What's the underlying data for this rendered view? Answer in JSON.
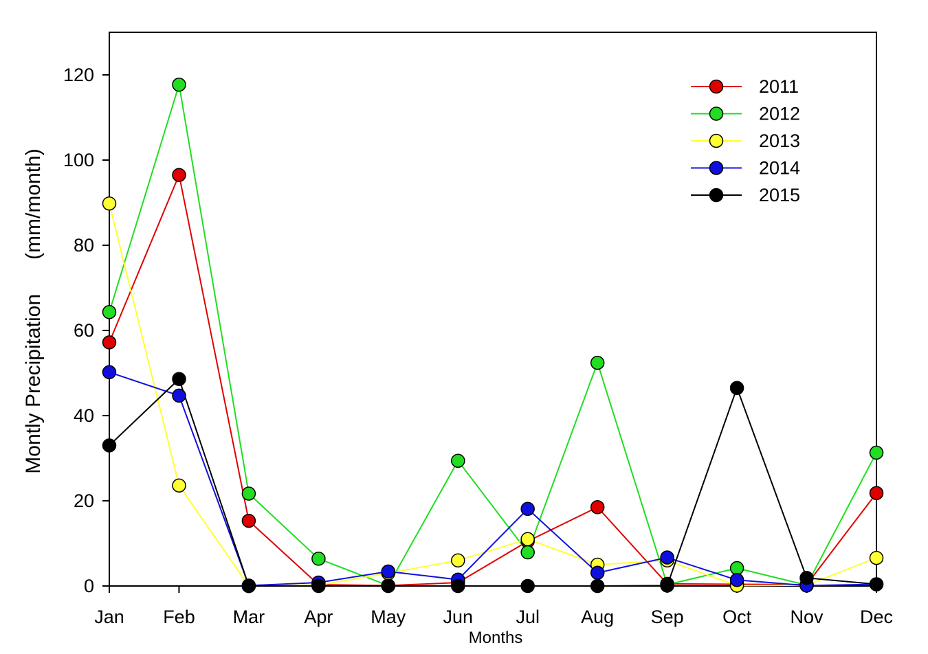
{
  "chart_data": {
    "type": "line",
    "title": "",
    "xlabel": "Months",
    "ylabel": "Montly Precipitation      (mm/month)",
    "categories": [
      "Jan",
      "Feb",
      "Mar",
      "Apr",
      "May",
      "Jun",
      "Jul",
      "Aug",
      "Sep",
      "Oct",
      "Nov",
      "Dec"
    ],
    "y_ticks": [
      "0",
      "20",
      "40",
      "60",
      "80",
      "100",
      "120"
    ],
    "ylim": [
      0,
      130
    ],
    "grid": false,
    "legend_position": "top-right",
    "series": [
      {
        "name": "2011",
        "color": "#e00000",
        "values": [
          57.2,
          96.5,
          15.3,
          0.3,
          0.1,
          0.8,
          10.5,
          18.5,
          0.5,
          0.4,
          0.3,
          21.8
        ]
      },
      {
        "name": "2012",
        "color": "#22dd22",
        "values": [
          64.3,
          117.7,
          21.7,
          6.4,
          0.1,
          29.4,
          7.9,
          52.4,
          0.3,
          4.2,
          0.2,
          31.3
        ]
      },
      {
        "name": "2013",
        "color": "#ffff33",
        "values": [
          89.8,
          23.6,
          0.0,
          0.2,
          3.0,
          6.0,
          11.0,
          5.0,
          6.0,
          0.1,
          0.2,
          6.6
        ]
      },
      {
        "name": "2014",
        "color": "#1010dd",
        "values": [
          50.2,
          44.7,
          0.1,
          0.8,
          3.4,
          1.5,
          18.1,
          3.1,
          6.7,
          1.4,
          0.1,
          0.4
        ]
      },
      {
        "name": "2015",
        "color": "#000000",
        "values": [
          33.0,
          48.6,
          0.0,
          0.0,
          0.0,
          0.0,
          0.0,
          0.0,
          0.1,
          46.5,
          1.9,
          0.4
        ]
      }
    ]
  }
}
